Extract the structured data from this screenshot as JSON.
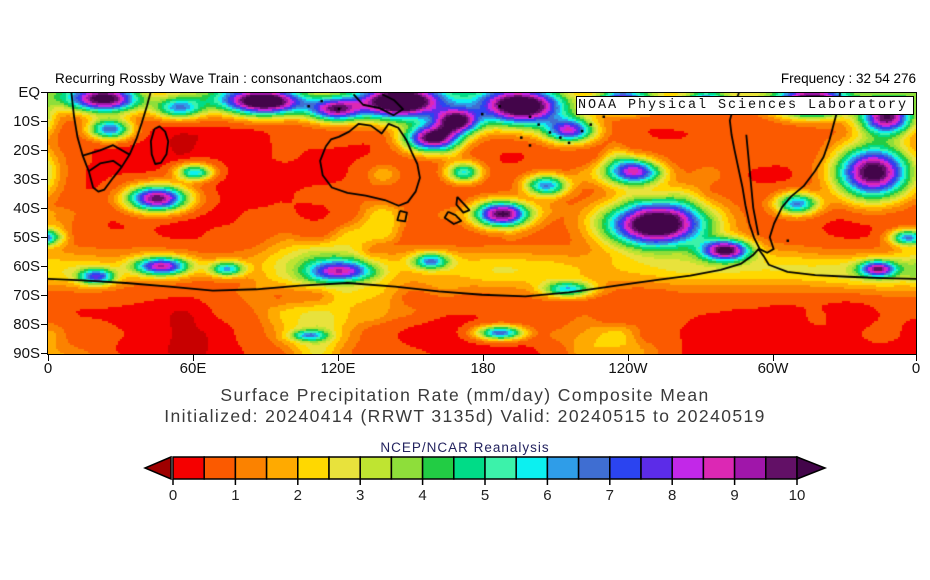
{
  "header": {
    "left": "Recurring Rossby Wave Train : consonantchaos.com",
    "right": "Frequency : 32 54 276"
  },
  "overlay_box": {
    "label": "NOAA Physical Sciences Laboratory"
  },
  "axes": {
    "lat": [
      "EQ",
      "10S",
      "20S",
      "30S",
      "40S",
      "50S",
      "60S",
      "70S",
      "80S",
      "90S"
    ],
    "lon": [
      "0",
      "60E",
      "120E",
      "180",
      "120W",
      "60W",
      "0"
    ]
  },
  "titles": {
    "line1": "Surface Precipitation Rate (mm/day) Composite Mean",
    "line2": "Initialized: 20240414 (RRWT 3135d) Valid: 20240515 to 20240519",
    "source": "NCEP/NCAR Reanalysis"
  },
  "colorbar": {
    "labels": [
      "0",
      "1",
      "2",
      "3",
      "4",
      "5",
      "6",
      "7",
      "8",
      "9",
      "10"
    ],
    "cell_colors": [
      "#f50000",
      "#fb5a00",
      "#fb8200",
      "#ffaa00",
      "#ffd800",
      "#e8e23c",
      "#bfe431",
      "#8ede3a",
      "#22cc44",
      "#00dc87",
      "#3cf2aa",
      "#0cf0f0",
      "#2f9de8",
      "#3f6ed2",
      "#2b44f0",
      "#5c2ce8",
      "#c228e8",
      "#dc28b4",
      "#a016aa",
      "#621066"
    ],
    "under_arrow_color": "#9e0000",
    "over_arrow_color": "#43054a",
    "low_red_color": "#c80000"
  },
  "chart_data": {
    "type": "heatmap",
    "title": "Surface Precipitation Rate (mm/day) Composite Mean",
    "units": "mm/day",
    "value_range": [
      0,
      10
    ],
    "lat_axis": {
      "top": "EQ",
      "bottom": "90S",
      "tick_step_deg": 10
    },
    "lon_axis": {
      "ticks": [
        "0",
        "60E",
        "120E",
        "180",
        "120W",
        "60W",
        "0"
      ],
      "span_deg": 360
    },
    "background_field": "mostly 0-1 mm/day (red) over subtropical and polar oceans",
    "high_precip_regions": [
      [
        0.065,
        0.02,
        0.04,
        0.05,
        9.5
      ],
      [
        0.15,
        0.055,
        0.028,
        0.04,
        5.5
      ],
      [
        0.25,
        0.03,
        0.048,
        0.052,
        10.5
      ],
      [
        0.33,
        0.06,
        0.03,
        0.045,
        8
      ],
      [
        0.405,
        0.035,
        0.05,
        0.065,
        11
      ],
      [
        0.47,
        0.105,
        0.026,
        0.05,
        9
      ],
      [
        0.545,
        0.05,
        0.05,
        0.07,
        11
      ],
      [
        0.6,
        0.14,
        0.028,
        0.045,
        7.5
      ],
      [
        0.66,
        0.03,
        0.03,
        0.04,
        7
      ],
      [
        0.757,
        0.025,
        0.022,
        0.03,
        5.5
      ],
      [
        0.88,
        0.03,
        0.04,
        0.055,
        10
      ],
      [
        0.965,
        0.09,
        0.03,
        0.065,
        9.5
      ],
      [
        0.125,
        0.4,
        0.034,
        0.048,
        9.5
      ],
      [
        0.168,
        0.3,
        0.02,
        0.03,
        5.5
      ],
      [
        0.07,
        0.135,
        0.024,
        0.038,
        6.5
      ],
      [
        0.44,
        0.17,
        0.03,
        0.05,
        9.5
      ],
      [
        0.478,
        0.3,
        0.02,
        0.038,
        5
      ],
      [
        0.52,
        0.46,
        0.03,
        0.048,
        9.5
      ],
      [
        0.573,
        0.35,
        0.024,
        0.04,
        6
      ],
      [
        0.7,
        0.5,
        0.058,
        0.085,
        11.5
      ],
      [
        0.672,
        0.295,
        0.03,
        0.05,
        7
      ],
      [
        0.78,
        0.598,
        0.028,
        0.04,
        9
      ],
      [
        0.95,
        0.3,
        0.042,
        0.1,
        10.5
      ],
      [
        0.862,
        0.42,
        0.024,
        0.04,
        6
      ],
      [
        0.99,
        0.55,
        0.02,
        0.03,
        6
      ],
      [
        0.598,
        0.748,
        0.028,
        0.03,
        5
      ],
      [
        0.34,
        0.68,
        0.034,
        0.04,
        6.5
      ],
      [
        0.13,
        0.66,
        0.03,
        0.034,
        7.5
      ],
      [
        0.205,
        0.67,
        0.02,
        0.028,
        5
      ],
      [
        0.44,
        0.64,
        0.02,
        0.03,
        5
      ],
      [
        0.52,
        0.915,
        0.026,
        0.026,
        6.5
      ],
      [
        0.3,
        0.925,
        0.02,
        0.02,
        4
      ],
      [
        0.955,
        0.67,
        0.02,
        0.03,
        7
      ],
      [
        0.055,
        0.7,
        0.02,
        0.03,
        6
      ]
    ],
    "storm_track_band": "enhanced 1-4 mm/day banding between 55S and 70S",
    "coastlines": {
      "africa": [
        [
          0.027,
          0.0
        ],
        [
          0.03,
          0.09
        ],
        [
          0.034,
          0.17
        ],
        [
          0.04,
          0.24
        ],
        [
          0.047,
          0.3
        ],
        [
          0.052,
          0.362
        ],
        [
          0.058,
          0.378
        ],
        [
          0.065,
          0.37
        ],
        [
          0.075,
          0.325
        ],
        [
          0.085,
          0.283
        ],
        [
          0.094,
          0.236
        ],
        [
          0.102,
          0.175
        ],
        [
          0.108,
          0.115
        ],
        [
          0.114,
          0.05
        ],
        [
          0.118,
          0.0
        ]
      ],
      "africa_border1": [
        [
          0.047,
          0.3
        ],
        [
          0.06,
          0.27
        ],
        [
          0.075,
          0.26
        ],
        [
          0.085,
          0.283
        ]
      ],
      "africa_border2": [
        [
          0.04,
          0.24
        ],
        [
          0.06,
          0.22
        ],
        [
          0.075,
          0.2
        ],
        [
          0.094,
          0.236
        ]
      ],
      "madagascar": [
        [
          0.1225,
          0.138
        ],
        [
          0.1285,
          0.128
        ],
        [
          0.135,
          0.148
        ],
        [
          0.1385,
          0.185
        ],
        [
          0.1365,
          0.235
        ],
        [
          0.13,
          0.268
        ],
        [
          0.1235,
          0.272
        ],
        [
          0.1195,
          0.235
        ],
        [
          0.1185,
          0.185
        ],
        [
          0.1225,
          0.138
        ]
      ],
      "australia": [
        [
          0.32,
          0.205
        ],
        [
          0.3135,
          0.26
        ],
        [
          0.3165,
          0.315
        ],
        [
          0.327,
          0.362
        ],
        [
          0.345,
          0.383
        ],
        [
          0.366,
          0.393
        ],
        [
          0.388,
          0.41
        ],
        [
          0.404,
          0.432
        ],
        [
          0.4145,
          0.418
        ],
        [
          0.4235,
          0.378
        ],
        [
          0.4285,
          0.325
        ],
        [
          0.4255,
          0.272
        ],
        [
          0.4195,
          0.23
        ],
        [
          0.4125,
          0.178
        ],
        [
          0.4035,
          0.133
        ],
        [
          0.3925,
          0.118
        ],
        [
          0.3845,
          0.155
        ],
        [
          0.372,
          0.125
        ],
        [
          0.358,
          0.118
        ],
        [
          0.347,
          0.148
        ],
        [
          0.335,
          0.168
        ],
        [
          0.326,
          0.178
        ],
        [
          0.32,
          0.205
        ]
      ],
      "tasmania": [
        [
          0.4055,
          0.452
        ],
        [
          0.4135,
          0.458
        ],
        [
          0.4115,
          0.492
        ],
        [
          0.4025,
          0.487
        ],
        [
          0.4055,
          0.452
        ]
      ],
      "new_guinea": [
        [
          0.352,
          0.005
        ],
        [
          0.363,
          0.045
        ],
        [
          0.382,
          0.058
        ],
        [
          0.398,
          0.085
        ],
        [
          0.409,
          0.062
        ],
        [
          0.399,
          0.028
        ],
        [
          0.385,
          0.005
        ]
      ],
      "nz_north": [
        [
          0.4715,
          0.398
        ],
        [
          0.479,
          0.425
        ],
        [
          0.4855,
          0.449
        ],
        [
          0.4785,
          0.458
        ],
        [
          0.4705,
          0.428
        ],
        [
          0.4715,
          0.398
        ]
      ],
      "nz_south": [
        [
          0.461,
          0.455
        ],
        [
          0.4695,
          0.468
        ],
        [
          0.476,
          0.49
        ],
        [
          0.4675,
          0.502
        ],
        [
          0.457,
          0.478
        ],
        [
          0.461,
          0.455
        ]
      ],
      "south_america": [
        [
          0.796,
          0.0
        ],
        [
          0.79,
          0.05
        ],
        [
          0.7855,
          0.105
        ],
        [
          0.7875,
          0.16
        ],
        [
          0.791,
          0.22
        ],
        [
          0.7955,
          0.29
        ],
        [
          0.8,
          0.36
        ],
        [
          0.8035,
          0.43
        ],
        [
          0.808,
          0.5
        ],
        [
          0.8135,
          0.555
        ],
        [
          0.82,
          0.598
        ],
        [
          0.8285,
          0.612
        ],
        [
          0.836,
          0.598
        ],
        [
          0.8315,
          0.553
        ],
        [
          0.8365,
          0.5
        ],
        [
          0.8455,
          0.438
        ],
        [
          0.856,
          0.397
        ],
        [
          0.8705,
          0.357
        ],
        [
          0.8835,
          0.3
        ],
        [
          0.8935,
          0.245
        ],
        [
          0.9005,
          0.178
        ],
        [
          0.9055,
          0.115
        ],
        [
          0.9105,
          0.055
        ],
        [
          0.9125,
          0.0
        ]
      ],
      "sa_border": [
        [
          0.8045,
          0.16
        ],
        [
          0.8085,
          0.3
        ],
        [
          0.8125,
          0.44
        ],
        [
          0.8185,
          0.545
        ]
      ],
      "antarctica": [
        [
          0.0,
          0.712
        ],
        [
          0.04,
          0.718
        ],
        [
          0.09,
          0.728
        ],
        [
          0.14,
          0.742
        ],
        [
          0.19,
          0.757
        ],
        [
          0.24,
          0.752
        ],
        [
          0.29,
          0.738
        ],
        [
          0.345,
          0.728
        ],
        [
          0.4,
          0.742
        ],
        [
          0.45,
          0.76
        ],
        [
          0.5,
          0.773
        ],
        [
          0.55,
          0.779
        ],
        [
          0.6,
          0.764
        ],
        [
          0.635,
          0.748
        ],
        [
          0.665,
          0.733
        ],
        [
          0.7,
          0.717
        ],
        [
          0.74,
          0.7
        ],
        [
          0.775,
          0.678
        ],
        [
          0.798,
          0.655
        ],
        [
          0.812,
          0.622
        ],
        [
          0.8185,
          0.598
        ],
        [
          0.8245,
          0.625
        ],
        [
          0.8305,
          0.658
        ],
        [
          0.852,
          0.685
        ],
        [
          0.884,
          0.698
        ],
        [
          0.922,
          0.704
        ],
        [
          0.962,
          0.709
        ],
        [
          1.0,
          0.712
        ]
      ],
      "islands": [
        [
          0.555,
          0.09
        ],
        [
          0.565,
          0.12
        ],
        [
          0.578,
          0.15
        ],
        [
          0.59,
          0.17
        ],
        [
          0.6,
          0.19
        ],
        [
          0.615,
          0.145
        ],
        [
          0.625,
          0.12
        ],
        [
          0.555,
          0.2
        ],
        [
          0.545,
          0.17
        ],
        [
          0.64,
          0.09
        ],
        [
          0.3,
          0.05
        ],
        [
          0.315,
          0.03
        ],
        [
          0.335,
          0.06
        ],
        [
          0.52,
          0.05
        ],
        [
          0.5,
          0.08
        ],
        [
          0.852,
          0.565
        ]
      ]
    },
    "colorbar_scale_mmday": {
      "min": 0,
      "max": 10,
      "step": 0.5,
      "under": "dark red",
      "over": "dark purple"
    }
  }
}
